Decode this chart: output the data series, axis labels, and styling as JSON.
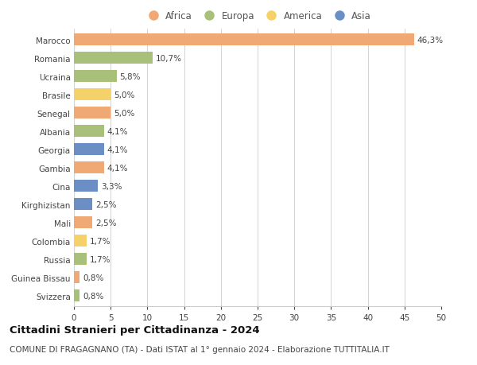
{
  "countries": [
    "Marocco",
    "Romania",
    "Ucraina",
    "Brasile",
    "Senegal",
    "Albania",
    "Georgia",
    "Gambia",
    "Cina",
    "Kirghizistan",
    "Mali",
    "Colombia",
    "Russia",
    "Guinea Bissau",
    "Svizzera"
  ],
  "values": [
    46.3,
    10.7,
    5.8,
    5.0,
    5.0,
    4.1,
    4.1,
    4.1,
    3.3,
    2.5,
    2.5,
    1.7,
    1.7,
    0.8,
    0.8
  ],
  "continents": [
    "Africa",
    "Europa",
    "Europa",
    "America",
    "Africa",
    "Europa",
    "Asia",
    "Africa",
    "Asia",
    "Asia",
    "Africa",
    "America",
    "Europa",
    "Africa",
    "Europa"
  ],
  "labels": [
    "46,3%",
    "10,7%",
    "5,8%",
    "5,0%",
    "5,0%",
    "4,1%",
    "4,1%",
    "4,1%",
    "3,3%",
    "2,5%",
    "2,5%",
    "1,7%",
    "1,7%",
    "0,8%",
    "0,8%"
  ],
  "colors": {
    "Africa": "#F0A875",
    "Europa": "#A8C07A",
    "America": "#F5D16A",
    "Asia": "#6B8FC4"
  },
  "legend_order": [
    "Africa",
    "Europa",
    "America",
    "Asia"
  ],
  "xlim": [
    0,
    50
  ],
  "xticks": [
    0,
    5,
    10,
    15,
    20,
    25,
    30,
    35,
    40,
    45,
    50
  ],
  "title": "Cittadini Stranieri per Cittadinanza - 2024",
  "subtitle": "COMUNE DI FRAGAGNANO (TA) - Dati ISTAT al 1° gennaio 2024 - Elaborazione TUTTITALIA.IT",
  "bg_color": "#ffffff",
  "grid_color": "#cccccc",
  "bar_height": 0.62,
  "title_fontsize": 9.5,
  "subtitle_fontsize": 7.5,
  "label_fontsize": 7.5,
  "tick_fontsize": 7.5,
  "legend_fontsize": 8.5
}
